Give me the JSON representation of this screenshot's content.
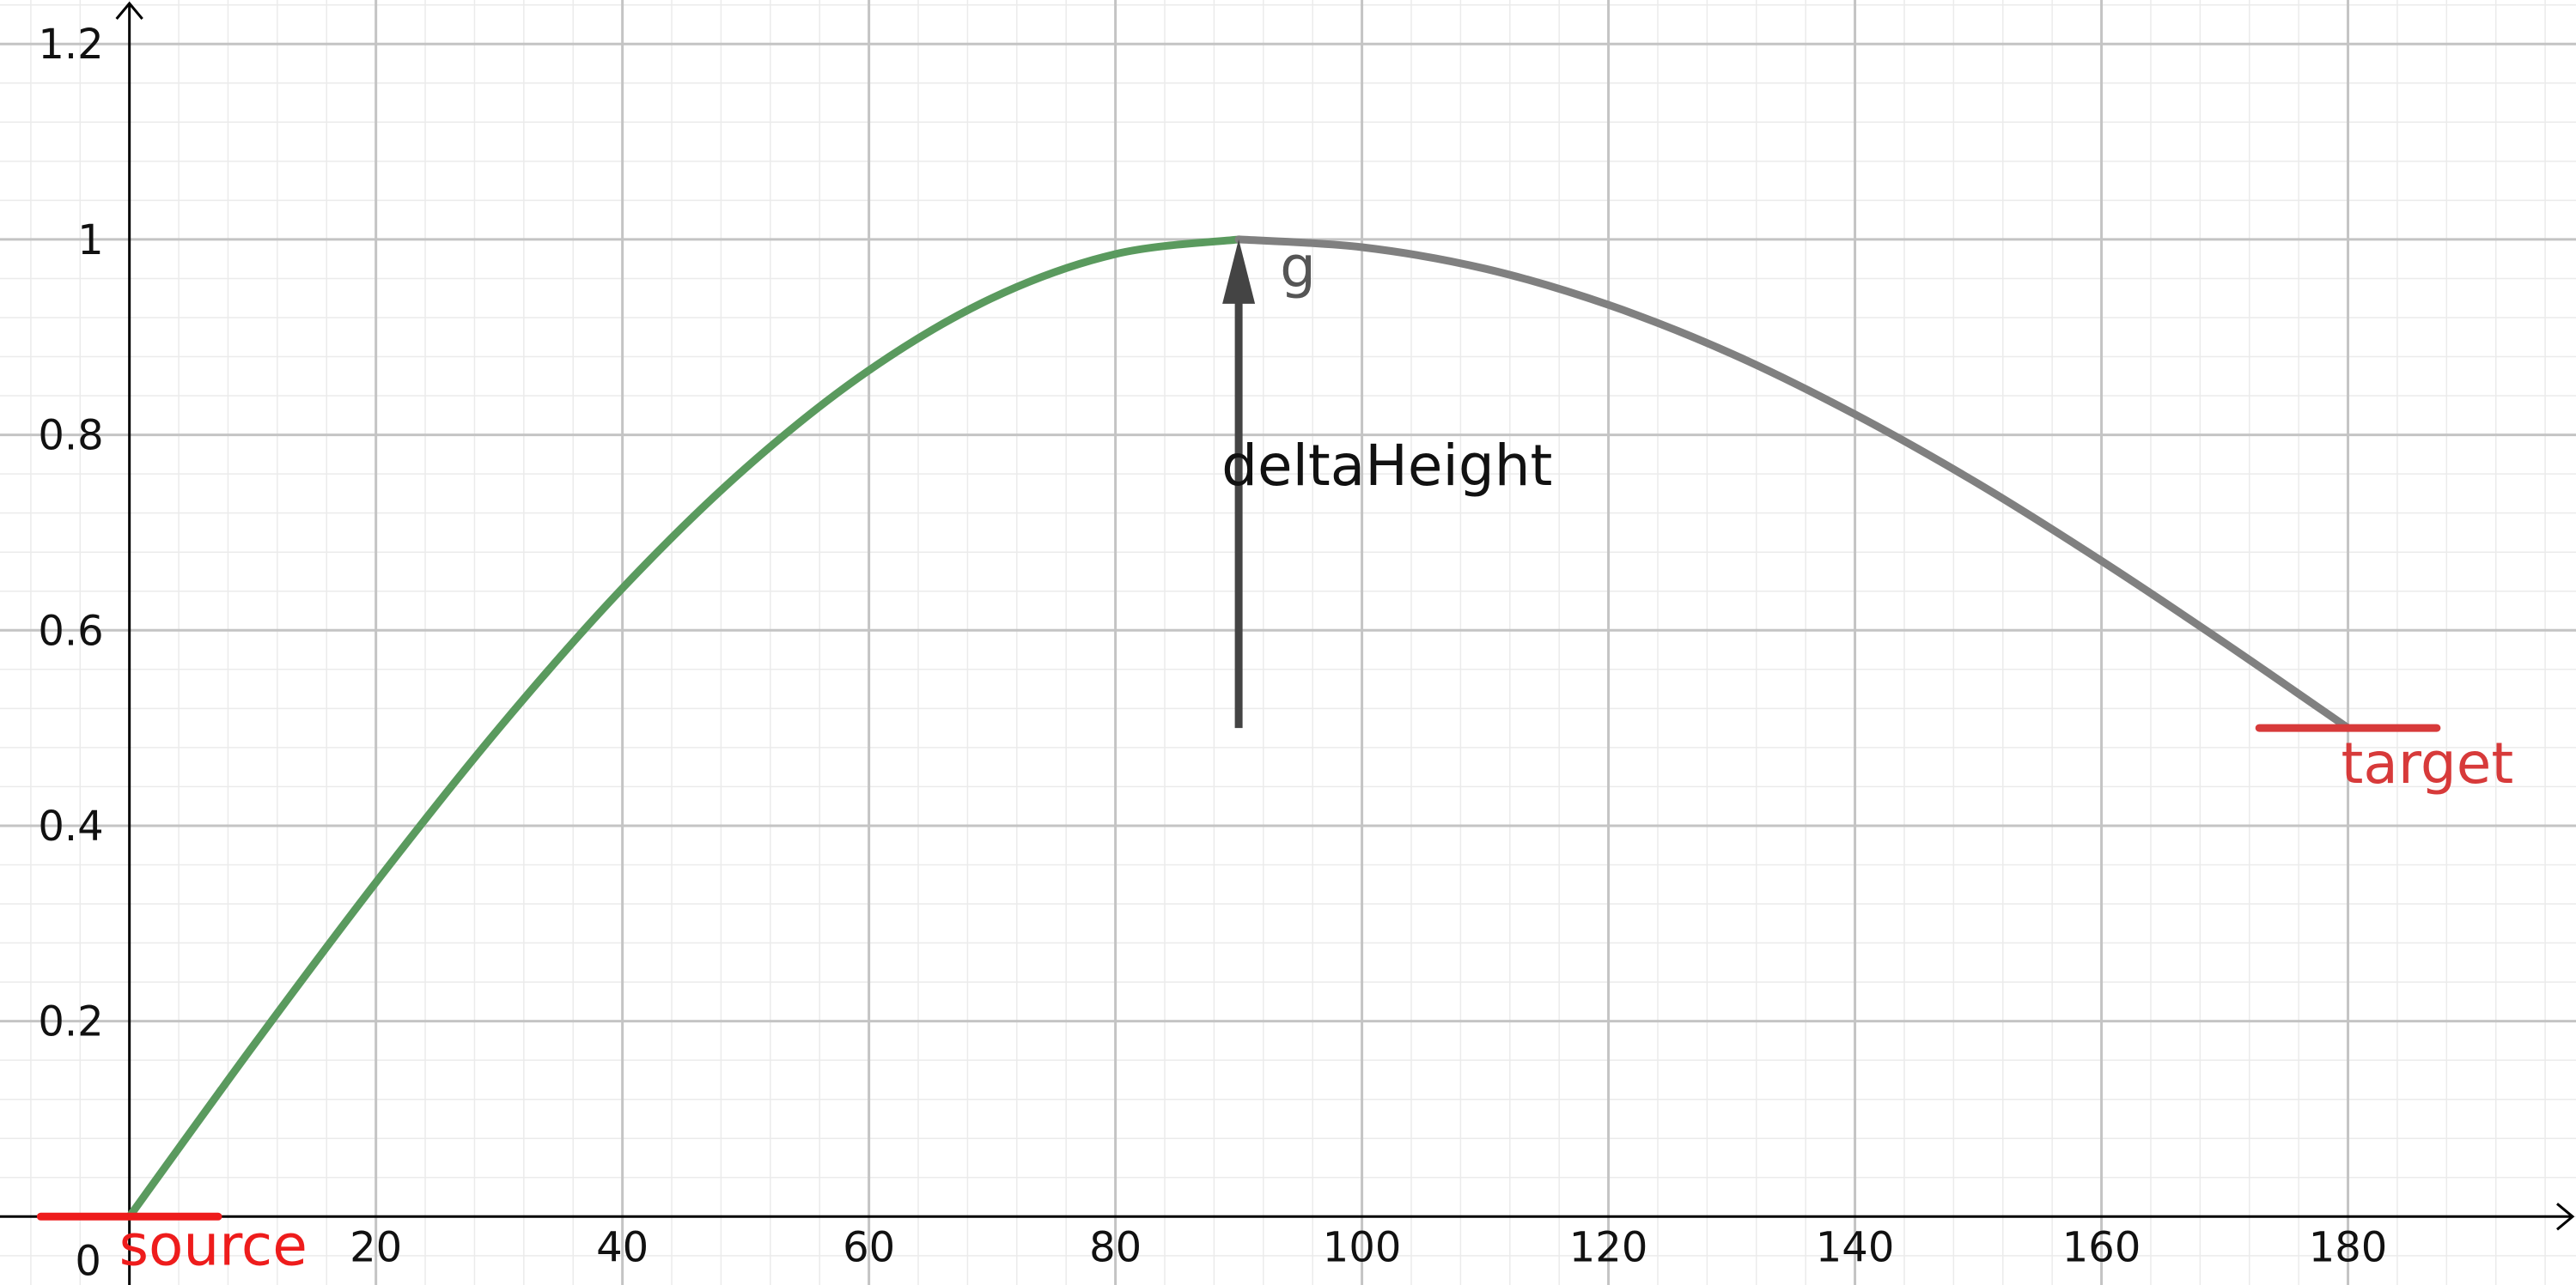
{
  "chart_data": {
    "type": "line",
    "title": "",
    "xlabel": "",
    "ylabel": "",
    "xlim": [
      -10.5,
      198.5
    ],
    "ylim": [
      -0.07,
      1.245
    ],
    "grid": true,
    "x_ticks": [
      20,
      40,
      60,
      80,
      100,
      120,
      140,
      160,
      180
    ],
    "x_tick_labels": [
      "20",
      "40",
      "60",
      "80",
      "100",
      "120",
      "140",
      "160",
      "180"
    ],
    "y_ticks": [
      0.2,
      0.4,
      0.6,
      0.8,
      1,
      1.2
    ],
    "y_tick_labels": [
      "0.2",
      "0.4",
      "0.6",
      "0.8",
      "1",
      "1.2"
    ],
    "origin_label": "0",
    "series": [
      {
        "color": "#5a9a5e",
        "x": [
          0,
          10,
          20,
          30,
          40,
          50,
          60,
          70,
          80,
          90
        ],
        "y": [
          0,
          0.174,
          0.342,
          0.5,
          0.643,
          0.766,
          0.866,
          0.94,
          0.985,
          1
        ]
      },
      {
        "color": "#808080",
        "x": [
          90,
          100,
          110,
          120,
          130,
          140,
          150,
          160,
          170,
          180
        ],
        "y": [
          1,
          0.992,
          0.97,
          0.933,
          0.883,
          0.821,
          0.75,
          0.671,
          0.587,
          0.5
        ]
      }
    ],
    "annotations": {
      "source": {
        "text": "source",
        "x": 0,
        "y": 0,
        "color": "#ee1c1c"
      },
      "target": {
        "text": "target",
        "x": 180,
        "y": 0.5,
        "color": "#d73a3a"
      },
      "vector": {
        "from": [
          90,
          0.5
        ],
        "to": [
          90,
          1
        ],
        "color": "#444444"
      },
      "vector_name": "g",
      "vector_label": "deltaHeight"
    }
  }
}
